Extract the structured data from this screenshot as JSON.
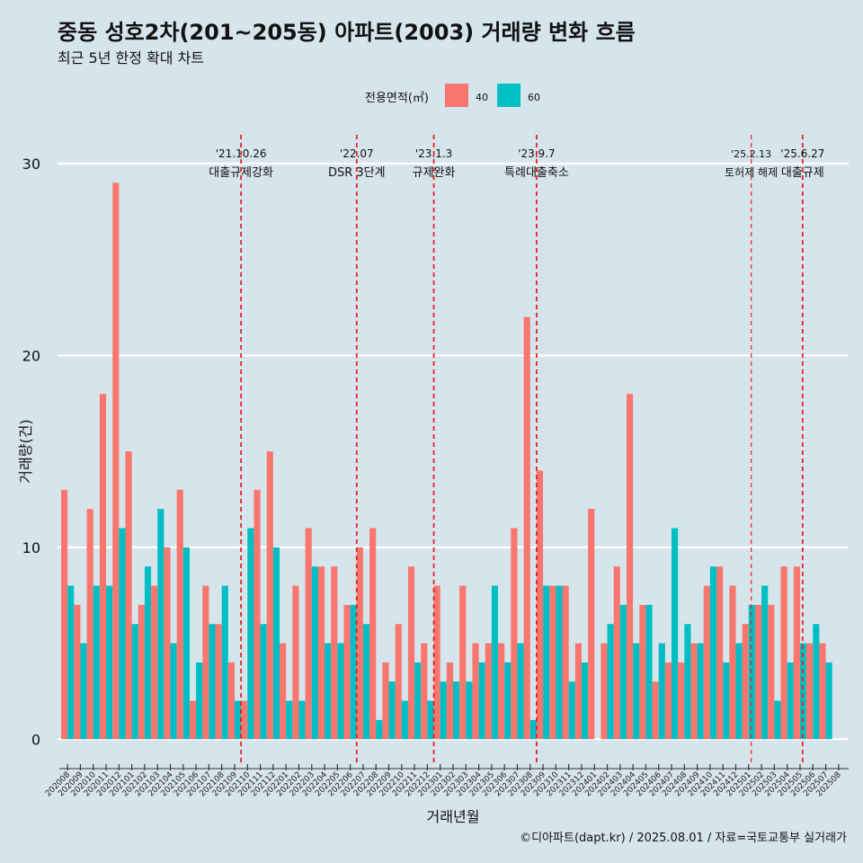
{
  "chart_data": {
    "type": "bar",
    "title": "중동 성호2차(201~205동) 아파트(2003) 거래량 변화 흐름",
    "subtitle": "최근 5년 한정 확대 차트",
    "xlabel": "거래년월",
    "ylabel": "거래량(건)",
    "ylim": [
      -1.3,
      31.5
    ],
    "yticks": [
      0,
      10,
      20,
      30
    ],
    "grid": true,
    "legend": {
      "title": "전용면적(㎡)",
      "position": "top"
    },
    "categories": [
      "202008",
      "202009",
      "202010",
      "202011",
      "202012",
      "202101",
      "202102",
      "202103",
      "202104",
      "202105",
      "202106",
      "202107",
      "202108",
      "202109",
      "202110",
      "202111",
      "202112",
      "202201",
      "202202",
      "202203",
      "202204",
      "202205",
      "202206",
      "202207",
      "202208",
      "202209",
      "202210",
      "202211",
      "202212",
      "202301",
      "202302",
      "202303",
      "202304",
      "202305",
      "202306",
      "202307",
      "202308",
      "202309",
      "202310",
      "202311",
      "202312",
      "202401",
      "202402",
      "202403",
      "202404",
      "202405",
      "202406",
      "202407",
      "202408",
      "202409",
      "202410",
      "202411",
      "202412",
      "202501",
      "202502",
      "202503",
      "202504",
      "202505",
      "202506",
      "202507",
      "202508"
    ],
    "series": [
      {
        "name": "40",
        "color": "#f8766d",
        "values": [
          13,
          7,
          12,
          18,
          29,
          15,
          7,
          8,
          10,
          13,
          2,
          8,
          6,
          4,
          2,
          13,
          15,
          5,
          8,
          11,
          9,
          9,
          7,
          10,
          11,
          4,
          6,
          9,
          5,
          8,
          4,
          8,
          5,
          5,
          5,
          11,
          22,
          14,
          8,
          8,
          5,
          12,
          5,
          9,
          18,
          7,
          3,
          4,
          4,
          5,
          8,
          9,
          8,
          6,
          7,
          7,
          9,
          9,
          5,
          5,
          null
        ]
      },
      {
        "name": "60",
        "color": "#00bfc4",
        "values": [
          8,
          5,
          8,
          8,
          11,
          6,
          9,
          12,
          5,
          10,
          4,
          6,
          8,
          2,
          11,
          6,
          10,
          2,
          2,
          9,
          5,
          5,
          7,
          6,
          1,
          3,
          2,
          4,
          2,
          3,
          3,
          3,
          4,
          8,
          4,
          5,
          1,
          8,
          8,
          3,
          4,
          null,
          6,
          7,
          5,
          7,
          5,
          11,
          6,
          5,
          9,
          4,
          5,
          7,
          8,
          2,
          4,
          5,
          6,
          4,
          null
        ]
      }
    ],
    "annotations": [
      {
        "date": "'21.10.26",
        "label": "대출규제강화",
        "index": 14
      },
      {
        "date": "'22.07",
        "label": "DSR 3단계",
        "index": 23
      },
      {
        "date": "'23.1.3",
        "label": "규제완화",
        "index": 29
      },
      {
        "date": "'23.9.7",
        "label": "특례대출축소",
        "index": 37
      },
      {
        "date": "'25.2.13",
        "label": "토허제 해제",
        "index": 53.7
      },
      {
        "date": "'25.6.27",
        "label": "대출규제",
        "index": 57.7
      }
    ]
  },
  "caption": "©디아파트(dapt.kr) / 2025.08.01 / 자료=국토교통부 실거래가"
}
